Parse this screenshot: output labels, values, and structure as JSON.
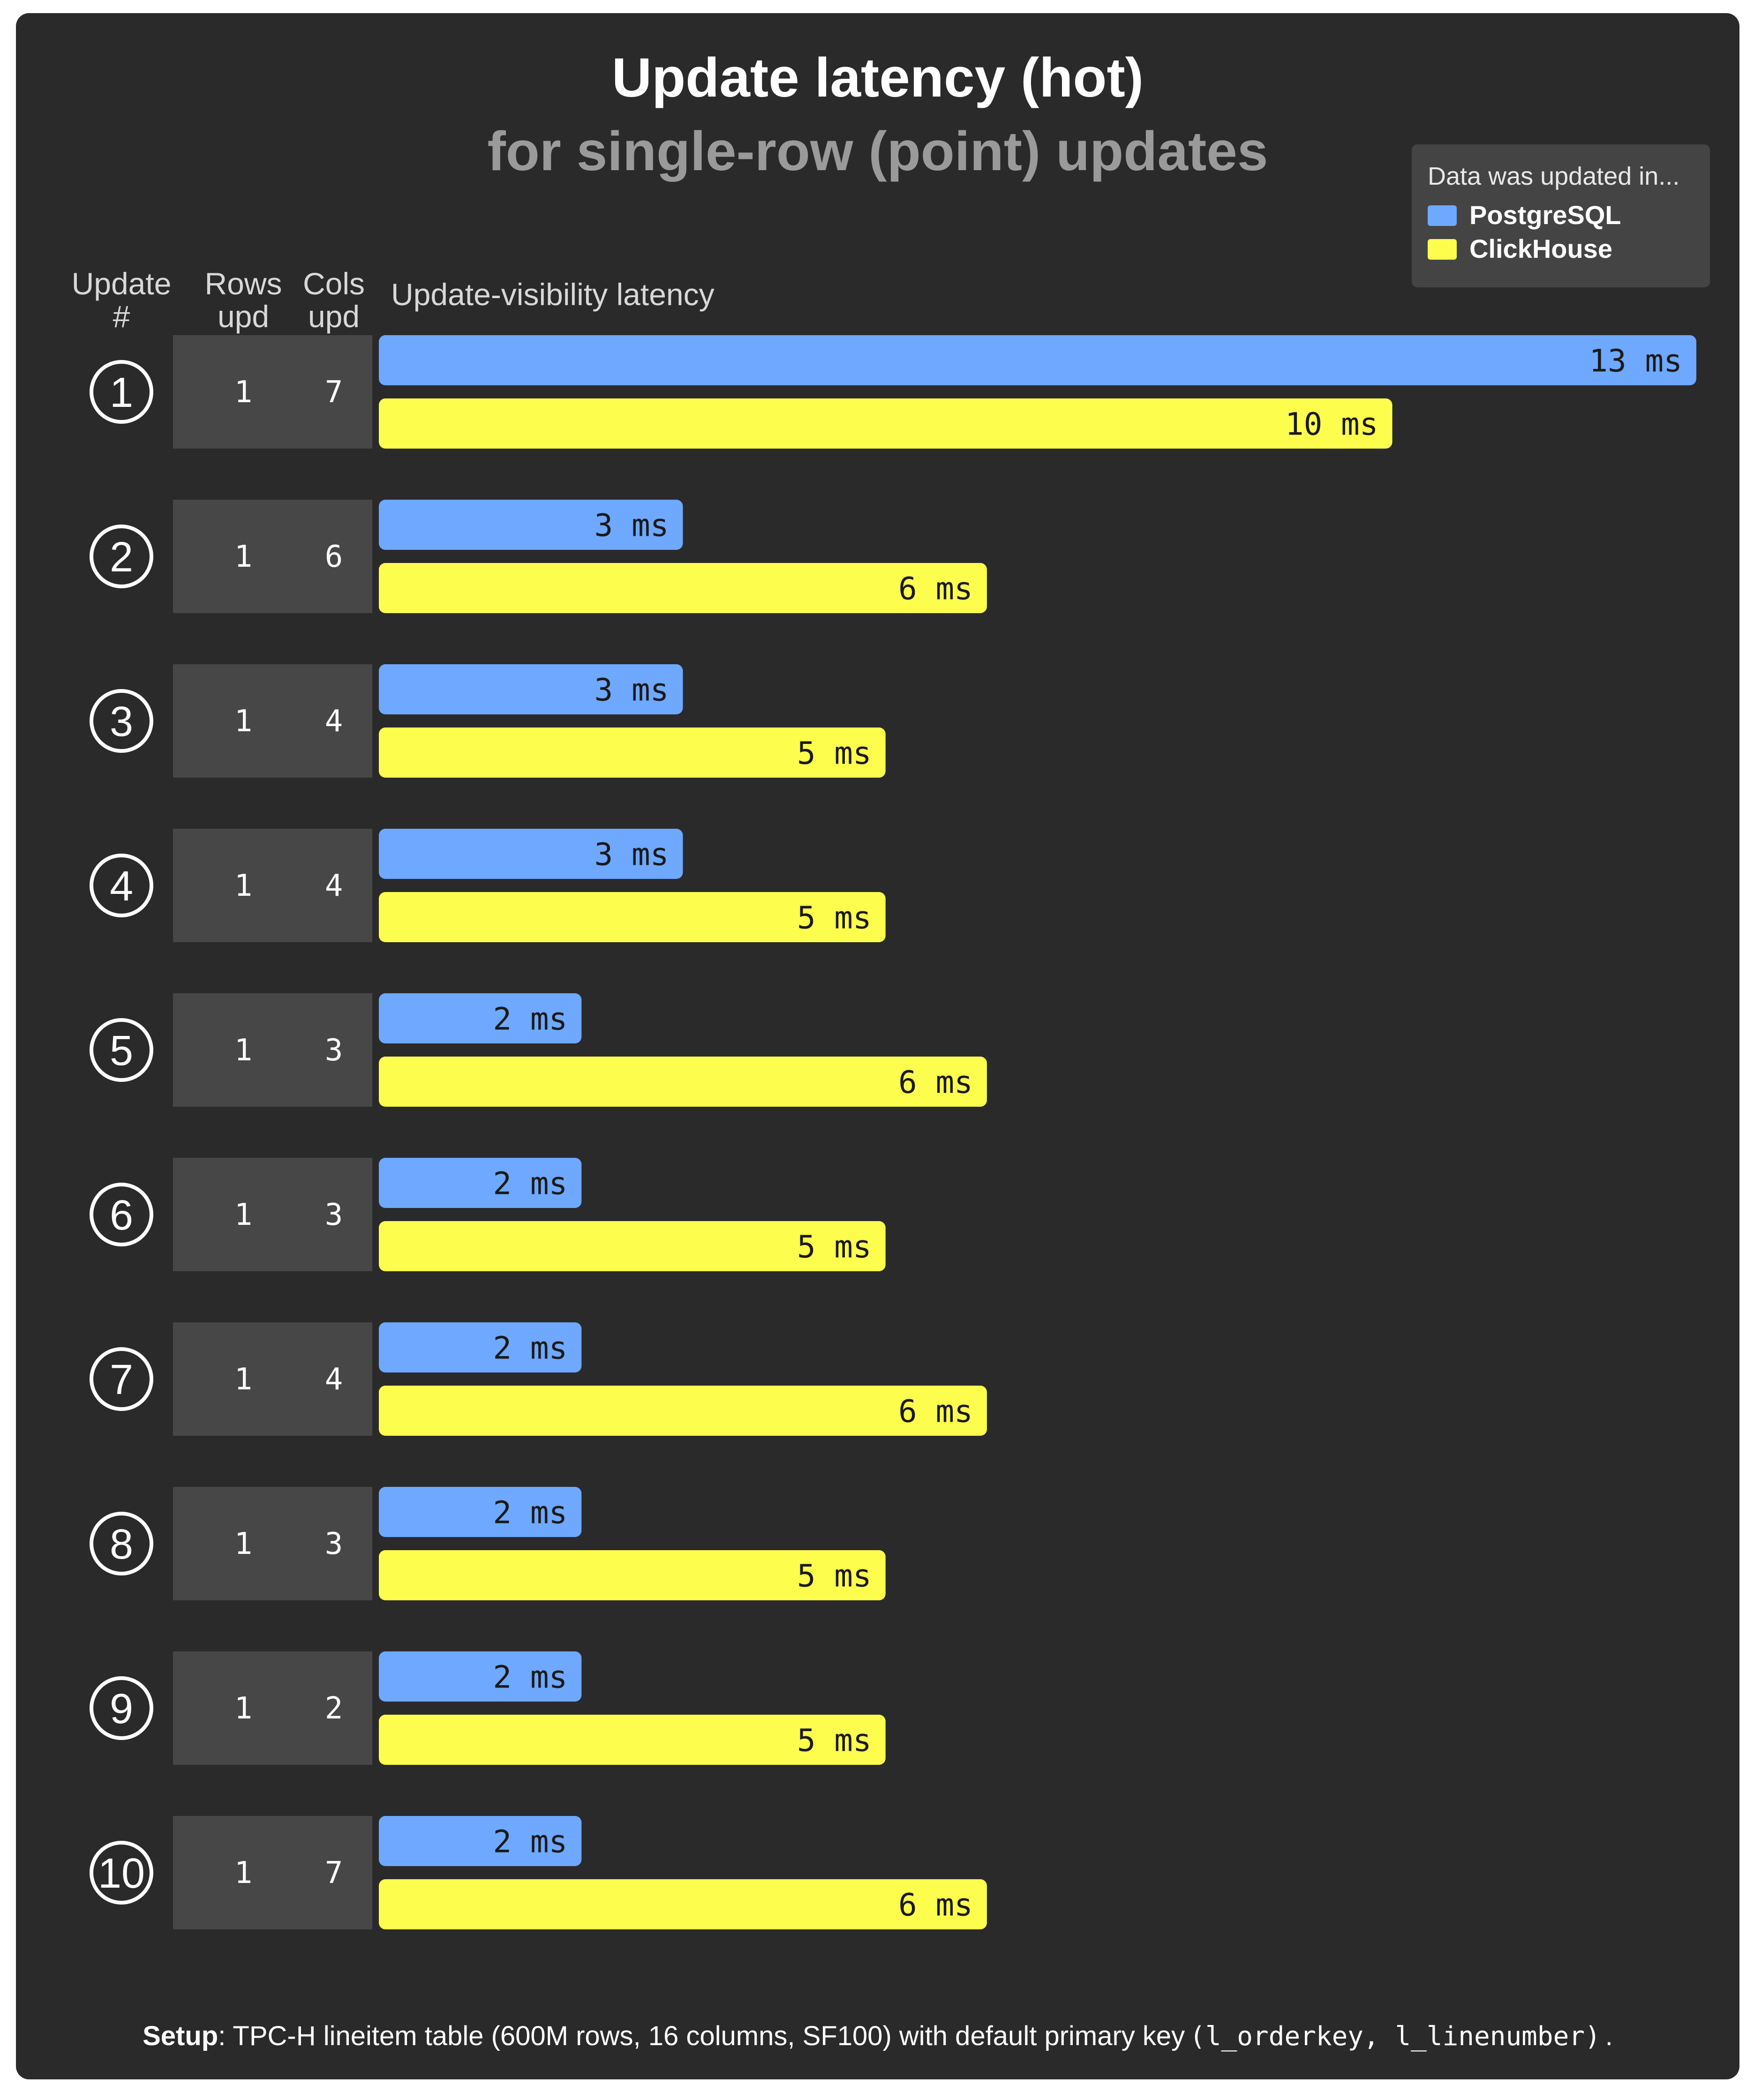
{
  "title": "Update latency (hot)",
  "subtitle": "for single-row (point) updates",
  "legend": {
    "title": "Data was updated in...",
    "items": [
      {
        "name": "PostgreSQL",
        "color": "#6ea8ff"
      },
      {
        "name": "ClickHouse",
        "color": "#fdfd4d"
      }
    ]
  },
  "headers": {
    "update_l1": "Update",
    "update_l2": "#",
    "rows_l1": "Rows",
    "rows_l2": "upd",
    "cols_l1": "Cols",
    "cols_l2": "upd",
    "latency": "Update-visibility latency"
  },
  "chart_data": {
    "type": "bar",
    "orientation": "horizontal",
    "title": "Update latency (hot)",
    "subtitle": "for single-row (point) updates",
    "xlabel": "Update-visibility latency",
    "unit": "ms",
    "xlim": [
      0,
      13
    ],
    "categories": [
      "①",
      "②",
      "③",
      "④",
      "⑤",
      "⑥",
      "⑦",
      "⑧",
      "⑨",
      "⑩"
    ],
    "rows_updated": [
      "1",
      "1",
      "1",
      "1",
      "1",
      "1",
      "1",
      "1",
      "1",
      "1"
    ],
    "cols_updated": [
      "7",
      "6",
      "4",
      "4",
      "3",
      "3",
      "4",
      "3",
      "2",
      "7"
    ],
    "series": [
      {
        "name": "PostgreSQL",
        "values": [
          13,
          3,
          3,
          3,
          2,
          2,
          2,
          2,
          2,
          2
        ],
        "labels": [
          "13 ms",
          "3 ms",
          "3 ms",
          "3 ms",
          "2 ms",
          "2 ms",
          "2 ms",
          "2 ms",
          "2 ms",
          "2 ms"
        ]
      },
      {
        "name": "ClickHouse",
        "values": [
          10,
          6,
          5,
          5,
          6,
          5,
          6,
          5,
          5,
          6
        ],
        "labels": [
          "10 ms",
          "6 ms",
          "5 ms",
          "5 ms",
          "6 ms",
          "5 ms",
          "6 ms",
          "5 ms",
          "5 ms",
          "6 ms"
        ]
      }
    ]
  },
  "footer": {
    "setup_label": "Setup",
    "text": ": TPC-H lineitem table (600M rows, 16 columns, SF100) with default primary key",
    "code": "(l_orderkey, l_linenumber)",
    "end": "."
  }
}
